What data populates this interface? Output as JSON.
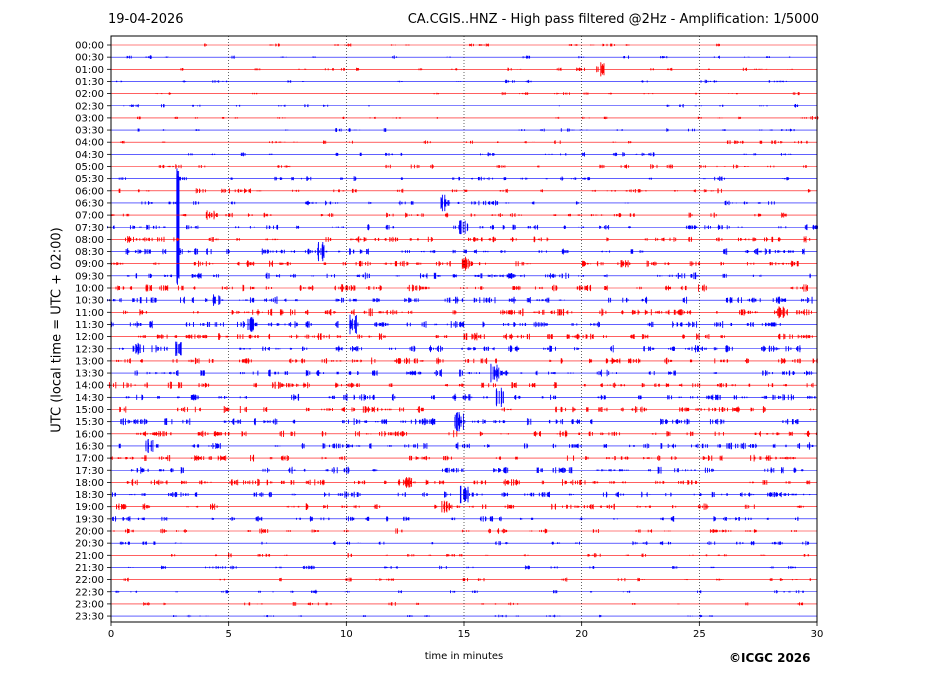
{
  "header": {
    "date": "19-04-2026",
    "title": "CA.CGIS..HNZ - High pass filtered @2Hz - Amplification: 1/5000"
  },
  "footer": {
    "copyright": "©ICGC 2026"
  },
  "colors": {
    "trace_even": "#ff0000",
    "trace_odd": "#0000ff",
    "grid": "#000000",
    "frame": "#000000"
  },
  "chart_data": {
    "type": "line",
    "title": "CA.CGIS..HNZ - High pass filtered @2Hz - Amplification: 1/5000",
    "xlabel": "time in minutes",
    "ylabel": "UTC (local time = UTC + 02:00)",
    "xlim": [
      0,
      30
    ],
    "xticks": [
      0,
      5,
      10,
      15,
      20,
      25,
      30
    ],
    "grid": "vertical dotted lines at each x tick",
    "yticks": [
      "00:00",
      "00:30",
      "01:00",
      "01:30",
      "02:00",
      "02:30",
      "03:00",
      "03:30",
      "04:00",
      "04:30",
      "05:00",
      "05:30",
      "06:00",
      "06:30",
      "07:00",
      "07:30",
      "08:00",
      "08:30",
      "09:00",
      "09:30",
      "10:00",
      "10:30",
      "11:00",
      "11:30",
      "12:00",
      "12:30",
      "13:00",
      "13:30",
      "14:00",
      "14:30",
      "15:00",
      "15:30",
      "16:00",
      "16:30",
      "17:00",
      "17:30",
      "18:00",
      "18:30",
      "19:00",
      "19:30",
      "20:00",
      "20:30",
      "21:00",
      "21:30",
      "22:00",
      "22:30",
      "23:00",
      "23:30"
    ],
    "series_color_pattern": [
      "red",
      "blue"
    ],
    "activity_level": [
      0.2,
      0.2,
      0.25,
      0.2,
      0.15,
      0.2,
      0.2,
      0.25,
      0.3,
      0.3,
      0.35,
      0.4,
      0.45,
      0.5,
      0.55,
      0.65,
      0.75,
      0.8,
      0.85,
      0.85,
      0.9,
      0.95,
      1.0,
      0.95,
      0.95,
      0.95,
      0.9,
      0.85,
      0.85,
      0.85,
      0.85,
      0.85,
      0.85,
      0.85,
      0.85,
      0.85,
      0.85,
      0.8,
      0.75,
      0.6,
      0.5,
      0.4,
      0.35,
      0.3,
      0.25,
      0.25,
      0.2,
      0.2
    ],
    "events": [
      {
        "row": 13,
        "x": 2.85,
        "amplitude": 8.5,
        "note": "large spike"
      },
      {
        "row": 2,
        "x": 20.8,
        "amplitude": 0.6
      },
      {
        "row": 13,
        "x": 14.2,
        "amplitude": 0.7
      },
      {
        "row": 14,
        "x": 4.2,
        "amplitude": 0.4
      },
      {
        "row": 15,
        "x": 15.0,
        "amplitude": 0.6
      },
      {
        "row": 17,
        "x": 8.9,
        "amplitude": 0.8
      },
      {
        "row": 18,
        "x": 15.0,
        "amplitude": 0.6
      },
      {
        "row": 21,
        "x": 4.5,
        "amplitude": 0.5
      },
      {
        "row": 22,
        "x": 28.5,
        "amplitude": 0.5
      },
      {
        "row": 23,
        "x": 5.9,
        "amplitude": 0.7
      },
      {
        "row": 23,
        "x": 10.3,
        "amplitude": 0.8
      },
      {
        "row": 25,
        "x": 1.2,
        "amplitude": 0.5
      },
      {
        "row": 25,
        "x": 2.9,
        "amplitude": 0.6
      },
      {
        "row": 27,
        "x": 16.3,
        "amplitude": 0.8
      },
      {
        "row": 29,
        "x": 16.5,
        "amplitude": 0.8
      },
      {
        "row": 31,
        "x": 14.8,
        "amplitude": 0.8
      },
      {
        "row": 33,
        "x": 1.6,
        "amplitude": 0.6
      },
      {
        "row": 36,
        "x": 12.6,
        "amplitude": 0.5
      },
      {
        "row": 37,
        "x": 15.0,
        "amplitude": 0.8
      },
      {
        "row": 38,
        "x": 14.2,
        "amplitude": 0.5
      }
    ]
  }
}
